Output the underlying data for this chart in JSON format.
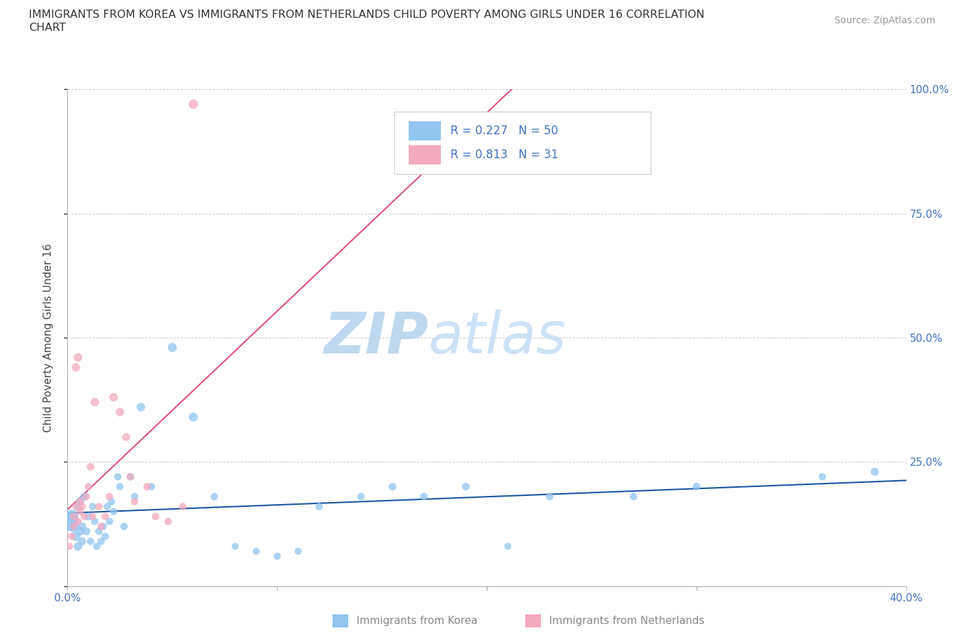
{
  "title_line1": "IMMIGRANTS FROM KOREA VS IMMIGRANTS FROM NETHERLANDS CHILD POVERTY AMONG GIRLS UNDER 16 CORRELATION",
  "title_line2": "CHART",
  "source": "Source: ZipAtlas.com",
  "ylabel": "Child Poverty Among Girls Under 16",
  "xlim": [
    0.0,
    0.4
  ],
  "ylim": [
    0.0,
    1.0
  ],
  "korea_R": 0.227,
  "korea_N": 50,
  "netherlands_R": 0.813,
  "netherlands_N": 31,
  "korea_color": "#92C5F0",
  "netherlands_color": "#F4AABE",
  "korea_line_color": "#1A55A0",
  "netherlands_line_color": "#E0507A",
  "watermark_zip": "ZIP",
  "watermark_atlas": "atlas",
  "watermark_color": "#C8DFF5",
  "background_color": "#FFFFFF",
  "grid_color": "#CCCCCC",
  "legend_label_1": "Immigrants from Korea",
  "legend_label_2": "Immigrants from Netherlands",
  "tick_color": "#4472C4",
  "axis_color": "#AAAAAA",
  "korea_x": [
    0.001,
    0.002,
    0.003,
    0.004,
    0.005,
    0.005,
    0.006,
    0.006,
    0.007,
    0.007,
    0.008,
    0.009,
    0.01,
    0.011,
    0.012,
    0.013,
    0.014,
    0.015,
    0.016,
    0.017,
    0.018,
    0.019,
    0.02,
    0.021,
    0.022,
    0.024,
    0.025,
    0.027,
    0.03,
    0.032,
    0.035,
    0.04,
    0.05,
    0.06,
    0.07,
    0.08,
    0.09,
    0.1,
    0.11,
    0.12,
    0.14,
    0.155,
    0.17,
    0.19,
    0.21,
    0.23,
    0.27,
    0.3,
    0.36,
    0.385
  ],
  "korea_y": [
    0.13,
    0.14,
    0.12,
    0.1,
    0.08,
    0.16,
    0.17,
    0.11,
    0.12,
    0.09,
    0.18,
    0.11,
    0.14,
    0.09,
    0.16,
    0.13,
    0.08,
    0.11,
    0.09,
    0.12,
    0.1,
    0.16,
    0.13,
    0.17,
    0.15,
    0.22,
    0.2,
    0.12,
    0.22,
    0.18,
    0.36,
    0.2,
    0.48,
    0.34,
    0.18,
    0.08,
    0.07,
    0.06,
    0.07,
    0.16,
    0.18,
    0.2,
    0.18,
    0.2,
    0.08,
    0.18,
    0.18,
    0.2,
    0.22,
    0.23
  ],
  "korea_sizes": [
    400,
    200,
    150,
    100,
    80,
    80,
    80,
    80,
    70,
    70,
    70,
    70,
    70,
    60,
    60,
    60,
    60,
    60,
    60,
    60,
    60,
    60,
    60,
    60,
    60,
    60,
    60,
    60,
    60,
    60,
    80,
    60,
    90,
    90,
    60,
    55,
    55,
    55,
    55,
    60,
    60,
    65,
    60,
    65,
    55,
    60,
    60,
    65,
    60,
    70
  ],
  "netherlands_x": [
    0.001,
    0.002,
    0.003,
    0.003,
    0.004,
    0.004,
    0.005,
    0.005,
    0.006,
    0.006,
    0.007,
    0.008,
    0.009,
    0.01,
    0.011,
    0.012,
    0.013,
    0.015,
    0.016,
    0.018,
    0.02,
    0.022,
    0.025,
    0.028,
    0.03,
    0.032,
    0.038,
    0.042,
    0.048,
    0.055,
    0.06
  ],
  "netherlands_y": [
    0.08,
    0.1,
    0.14,
    0.12,
    0.44,
    0.16,
    0.46,
    0.13,
    0.15,
    0.17,
    0.16,
    0.14,
    0.18,
    0.2,
    0.24,
    0.14,
    0.37,
    0.16,
    0.12,
    0.14,
    0.18,
    0.38,
    0.35,
    0.3,
    0.22,
    0.17,
    0.2,
    0.14,
    0.13,
    0.16,
    0.97
  ],
  "netherlands_sizes": [
    55,
    60,
    60,
    60,
    80,
    60,
    80,
    60,
    60,
    60,
    60,
    60,
    60,
    60,
    65,
    60,
    80,
    60,
    60,
    60,
    60,
    80,
    80,
    70,
    65,
    60,
    65,
    60,
    60,
    60,
    95
  ]
}
